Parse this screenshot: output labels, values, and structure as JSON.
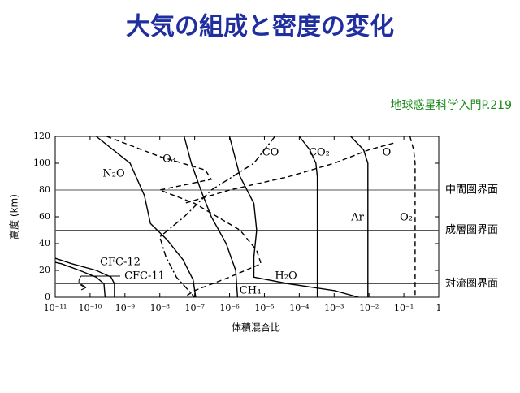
{
  "chart_data": {
    "type": "line",
    "title": "大気の組成と密度の変化",
    "source": "地球惑星科学入門P.219",
    "x_label": "体積混合比",
    "y_label": "高度 (km)",
    "xscale": "log",
    "xlim": [
      1e-11,
      1
    ],
    "ylim": [
      0,
      120
    ],
    "xticks": [
      {
        "value": 1e-11,
        "label": "10⁻¹¹"
      },
      {
        "value": 1e-10,
        "label": "10⁻¹⁰"
      },
      {
        "value": 1e-09,
        "label": "10⁻⁹"
      },
      {
        "value": 1e-08,
        "label": "10⁻⁸"
      },
      {
        "value": 1e-07,
        "label": "10⁻⁷"
      },
      {
        "value": 1e-06,
        "label": "10⁻⁶"
      },
      {
        "value": 1e-05,
        "label": "10⁻⁵"
      },
      {
        "value": 0.0001,
        "label": "10⁻⁴"
      },
      {
        "value": 0.001,
        "label": "10⁻³"
      },
      {
        "value": 0.01,
        "label": "10⁻²"
      },
      {
        "value": 0.1,
        "label": "10⁻¹"
      },
      1
    ],
    "yticks": [
      0,
      20,
      40,
      60,
      80,
      100,
      120
    ],
    "boundaries": [
      {
        "altitude": 80,
        "label": "中間圏界面"
      },
      {
        "altitude": 50,
        "label": "成層圏界面"
      },
      {
        "altitude": 10,
        "label": "対流圏界面"
      }
    ],
    "series": [
      {
        "name": "N₂O",
        "color": "#000000",
        "dash": "solid",
        "x": [
          1.5e-10,
          1.4e-09,
          3.6e-09,
          5.4e-09,
          1.6e-08,
          4.6e-08,
          9e-08,
          1.07e-07
        ],
        "values": [
          120,
          100,
          76,
          55,
          43,
          28,
          13,
          0
        ]
      },
      {
        "name": "O₃",
        "color": "#000000",
        "dash": "dashed",
        "x": [
          3e-10,
          1e-08,
          2e-07,
          3e-07,
          1e-08,
          1e-07,
          2e-06,
          6e-06,
          8e-06,
          1e-06,
          1e-07,
          5e-08
        ],
        "values": [
          120,
          105,
          95,
          88,
          80,
          70,
          50,
          35,
          25,
          15,
          5,
          0
        ]
      },
      {
        "name": "CO",
        "color": "#000000",
        "dash": "dashdot",
        "x": [
          2e-05,
          5e-06,
          3e-07,
          5e-08,
          1e-08,
          1.5e-08,
          3e-08,
          1e-07
        ],
        "values": [
          120,
          100,
          80,
          60,
          45,
          30,
          15,
          0
        ]
      },
      {
        "name": "CO₂",
        "color": "#000000",
        "dash": "solid",
        "x": [
          0.0001,
          0.0002,
          0.0003,
          0.00033,
          0.00033
        ],
        "values": [
          120,
          110,
          100,
          90,
          0
        ]
      },
      {
        "name": "O",
        "color": "#000000",
        "dash": "dashed",
        "x": [
          0.05,
          0.01,
          0.001,
          5e-05,
          1e-06,
          5e-08
        ],
        "values": [
          115,
          110,
          100,
          90,
          80,
          70
        ]
      },
      {
        "name": "Ar",
        "color": "#000000",
        "dash": "solid",
        "x": [
          0.003,
          0.007,
          0.0093,
          0.0093
        ],
        "values": [
          120,
          110,
          100,
          0
        ]
      },
      {
        "name": "O₂",
        "color": "#000000",
        "dash": "dashed",
        "x": [
          0.15,
          0.19,
          0.21,
          0.21
        ],
        "values": [
          120,
          110,
          100,
          0
        ]
      },
      {
        "name": "CH₄",
        "color": "#000000",
        "dash": "solid",
        "x": [
          5e-08,
          8e-08,
          1.5e-07,
          3e-07,
          8e-07,
          1.5e-06,
          1.7e-06
        ],
        "values": [
          120,
          100,
          80,
          60,
          40,
          20,
          0
        ]
      },
      {
        "name": "H₂O",
        "color": "#000000",
        "dash": "solid",
        "x": [
          1e-06,
          2e-06,
          5e-06,
          6e-06,
          5e-06,
          5e-06,
          5e-05,
          0.001,
          0.005
        ],
        "values": [
          120,
          90,
          70,
          50,
          30,
          15,
          10,
          5,
          0
        ]
      },
      {
        "name": "CFC-12",
        "color": "#000000",
        "dash": "solid",
        "x": [
          1e-11,
          3e-11,
          1.5e-10,
          4e-10,
          5e-10,
          5e-10
        ],
        "values": [
          29,
          25,
          20,
          15,
          10,
          0
        ]
      },
      {
        "name": "CFC-11",
        "color": "#000000",
        "dash": "solid",
        "x": [
          1e-11,
          1.5e-11,
          5e-11,
          1.5e-10,
          2.5e-10,
          2.7e-10
        ],
        "values": [
          26,
          25,
          20,
          15,
          10,
          0
        ]
      }
    ]
  }
}
